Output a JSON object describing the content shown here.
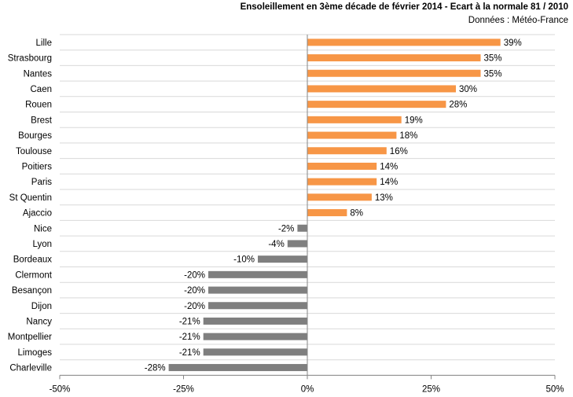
{
  "chart_data": {
    "type": "bar",
    "orientation": "horizontal",
    "title": "Ensoleillement en 3ème décade de février 2014 - Ecart à la normale 81 / 2010",
    "subtitle": "Données : Météo-France",
    "categories": [
      "Lille",
      "Strasbourg",
      "Nantes",
      "Caen",
      "Rouen",
      "Brest",
      "Bourges",
      "Toulouse",
      "Poitiers",
      "Paris",
      "St Quentin",
      "Ajaccio",
      "Nice",
      "Lyon",
      "Bordeaux",
      "Clermont",
      "Besançon",
      "Dijon",
      "Nancy",
      "Montpellier",
      "Limoges",
      "Charleville"
    ],
    "values": [
      39,
      35,
      35,
      30,
      28,
      19,
      18,
      16,
      14,
      14,
      13,
      8,
      -2,
      -4,
      -10,
      -20,
      -20,
      -20,
      -21,
      -21,
      -21,
      -28
    ],
    "value_labels": [
      "39%",
      "35%",
      "35%",
      "30%",
      "28%",
      "19%",
      "18%",
      "16%",
      "14%",
      "14%",
      "13%",
      "8%",
      "-2%",
      "-4%",
      "-10%",
      "-20%",
      "-20%",
      "-20%",
      "-21%",
      "-21%",
      "-21%",
      "-28%"
    ],
    "xlim": [
      -50,
      50
    ],
    "xticks": [
      -50,
      -25,
      0,
      25,
      50
    ],
    "xtick_labels": [
      "-50%",
      "-25%",
      "0%",
      "25%",
      "50%"
    ],
    "grid": "horizontal",
    "positive_color": "#F79646",
    "negative_color": "#7F7F7F",
    "gridline_color": "#D9D9D9",
    "axis_color": "#868686"
  }
}
